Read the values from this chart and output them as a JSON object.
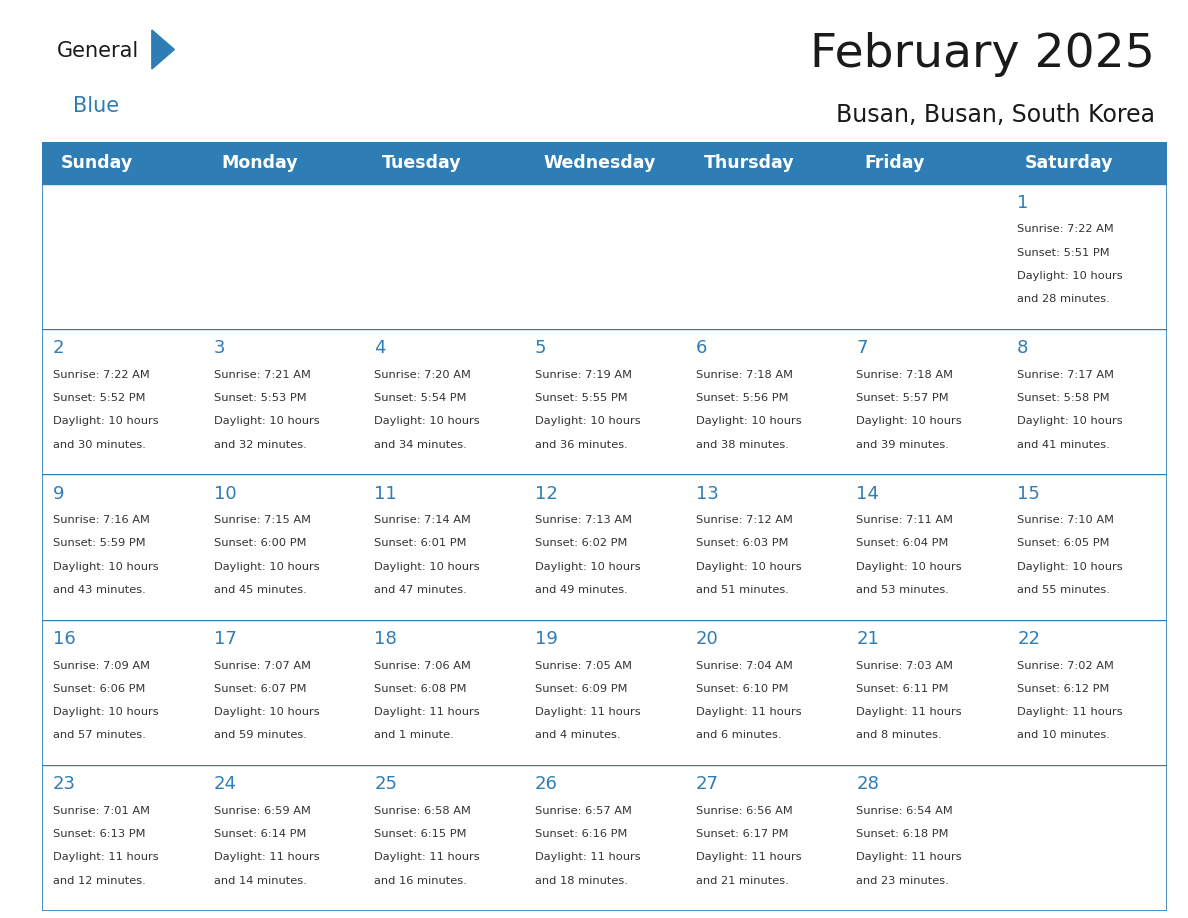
{
  "title": "February 2025",
  "subtitle": "Busan, Busan, South Korea",
  "header_bg": "#2E7DB5",
  "header_text_color": "#FFFFFF",
  "border_color": "#2E7DB5",
  "day_headers": [
    "Sunday",
    "Monday",
    "Tuesday",
    "Wednesday",
    "Thursday",
    "Friday",
    "Saturday"
  ],
  "title_color": "#1a1a1a",
  "subtitle_color": "#1a1a1a",
  "day_number_color": "#2E7DB5",
  "info_text_color": "#333333",
  "logo_general_color": "#1a1a1a",
  "logo_blue_color": "#2E7DB5",
  "logo_triangle_color": "#2E7DB5",
  "num_rows": 5,
  "calendar": [
    [
      null,
      null,
      null,
      null,
      null,
      null,
      {
        "day": 1,
        "sunrise": "7:22 AM",
        "sunset": "5:51 PM",
        "daylight_h": "10 hours",
        "daylight_m": "and 28 minutes."
      }
    ],
    [
      {
        "day": 2,
        "sunrise": "7:22 AM",
        "sunset": "5:52 PM",
        "daylight_h": "10 hours",
        "daylight_m": "and 30 minutes."
      },
      {
        "day": 3,
        "sunrise": "7:21 AM",
        "sunset": "5:53 PM",
        "daylight_h": "10 hours",
        "daylight_m": "and 32 minutes."
      },
      {
        "day": 4,
        "sunrise": "7:20 AM",
        "sunset": "5:54 PM",
        "daylight_h": "10 hours",
        "daylight_m": "and 34 minutes."
      },
      {
        "day": 5,
        "sunrise": "7:19 AM",
        "sunset": "5:55 PM",
        "daylight_h": "10 hours",
        "daylight_m": "and 36 minutes."
      },
      {
        "day": 6,
        "sunrise": "7:18 AM",
        "sunset": "5:56 PM",
        "daylight_h": "10 hours",
        "daylight_m": "and 38 minutes."
      },
      {
        "day": 7,
        "sunrise": "7:18 AM",
        "sunset": "5:57 PM",
        "daylight_h": "10 hours",
        "daylight_m": "and 39 minutes."
      },
      {
        "day": 8,
        "sunrise": "7:17 AM",
        "sunset": "5:58 PM",
        "daylight_h": "10 hours",
        "daylight_m": "and 41 minutes."
      }
    ],
    [
      {
        "day": 9,
        "sunrise": "7:16 AM",
        "sunset": "5:59 PM",
        "daylight_h": "10 hours",
        "daylight_m": "and 43 minutes."
      },
      {
        "day": 10,
        "sunrise": "7:15 AM",
        "sunset": "6:00 PM",
        "daylight_h": "10 hours",
        "daylight_m": "and 45 minutes."
      },
      {
        "day": 11,
        "sunrise": "7:14 AM",
        "sunset": "6:01 PM",
        "daylight_h": "10 hours",
        "daylight_m": "and 47 minutes."
      },
      {
        "day": 12,
        "sunrise": "7:13 AM",
        "sunset": "6:02 PM",
        "daylight_h": "10 hours",
        "daylight_m": "and 49 minutes."
      },
      {
        "day": 13,
        "sunrise": "7:12 AM",
        "sunset": "6:03 PM",
        "daylight_h": "10 hours",
        "daylight_m": "and 51 minutes."
      },
      {
        "day": 14,
        "sunrise": "7:11 AM",
        "sunset": "6:04 PM",
        "daylight_h": "10 hours",
        "daylight_m": "and 53 minutes."
      },
      {
        "day": 15,
        "sunrise": "7:10 AM",
        "sunset": "6:05 PM",
        "daylight_h": "10 hours",
        "daylight_m": "and 55 minutes."
      }
    ],
    [
      {
        "day": 16,
        "sunrise": "7:09 AM",
        "sunset": "6:06 PM",
        "daylight_h": "10 hours",
        "daylight_m": "and 57 minutes."
      },
      {
        "day": 17,
        "sunrise": "7:07 AM",
        "sunset": "6:07 PM",
        "daylight_h": "10 hours",
        "daylight_m": "and 59 minutes."
      },
      {
        "day": 18,
        "sunrise": "7:06 AM",
        "sunset": "6:08 PM",
        "daylight_h": "11 hours",
        "daylight_m": "and 1 minute."
      },
      {
        "day": 19,
        "sunrise": "7:05 AM",
        "sunset": "6:09 PM",
        "daylight_h": "11 hours",
        "daylight_m": "and 4 minutes."
      },
      {
        "day": 20,
        "sunrise": "7:04 AM",
        "sunset": "6:10 PM",
        "daylight_h": "11 hours",
        "daylight_m": "and 6 minutes."
      },
      {
        "day": 21,
        "sunrise": "7:03 AM",
        "sunset": "6:11 PM",
        "daylight_h": "11 hours",
        "daylight_m": "and 8 minutes."
      },
      {
        "day": 22,
        "sunrise": "7:02 AM",
        "sunset": "6:12 PM",
        "daylight_h": "11 hours",
        "daylight_m": "and 10 minutes."
      }
    ],
    [
      {
        "day": 23,
        "sunrise": "7:01 AM",
        "sunset": "6:13 PM",
        "daylight_h": "11 hours",
        "daylight_m": "and 12 minutes."
      },
      {
        "day": 24,
        "sunrise": "6:59 AM",
        "sunset": "6:14 PM",
        "daylight_h": "11 hours",
        "daylight_m": "and 14 minutes."
      },
      {
        "day": 25,
        "sunrise": "6:58 AM",
        "sunset": "6:15 PM",
        "daylight_h": "11 hours",
        "daylight_m": "and 16 minutes."
      },
      {
        "day": 26,
        "sunrise": "6:57 AM",
        "sunset": "6:16 PM",
        "daylight_h": "11 hours",
        "daylight_m": "and 18 minutes."
      },
      {
        "day": 27,
        "sunrise": "6:56 AM",
        "sunset": "6:17 PM",
        "daylight_h": "11 hours",
        "daylight_m": "and 21 minutes."
      },
      {
        "day": 28,
        "sunrise": "6:54 AM",
        "sunset": "6:18 PM",
        "daylight_h": "11 hours",
        "daylight_m": "and 23 minutes."
      },
      null
    ]
  ]
}
